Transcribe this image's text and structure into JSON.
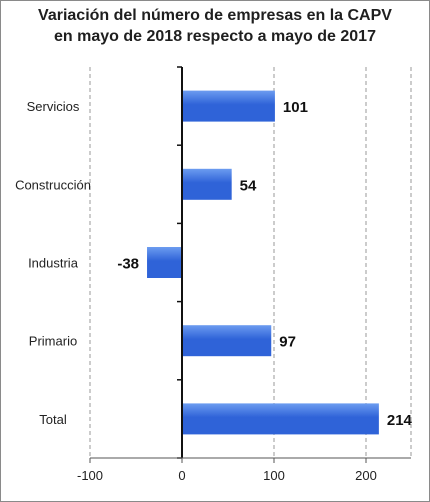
{
  "chart_data": {
    "type": "bar",
    "orientation": "horizontal",
    "title_lines": [
      "Variación del número de empresas en la CAPV",
      "en mayo de 2018 respecto a mayo de 2017"
    ],
    "categories": [
      "Servicios",
      "Construcción",
      "Industria",
      "Primario",
      "Total"
    ],
    "values": [
      101,
      54,
      -38,
      97,
      214
    ],
    "data_labels": [
      "101",
      "54",
      "-38",
      "97",
      "214"
    ],
    "xlim": [
      -100,
      250
    ],
    "xticks": [
      -100,
      0,
      100,
      200
    ],
    "xtick_labels": [
      "-100",
      "0",
      "100",
      "200"
    ],
    "grid": true,
    "legend": "none",
    "bar_color": "#2f63d8",
    "bar_highlight": "#6c9cf0"
  }
}
